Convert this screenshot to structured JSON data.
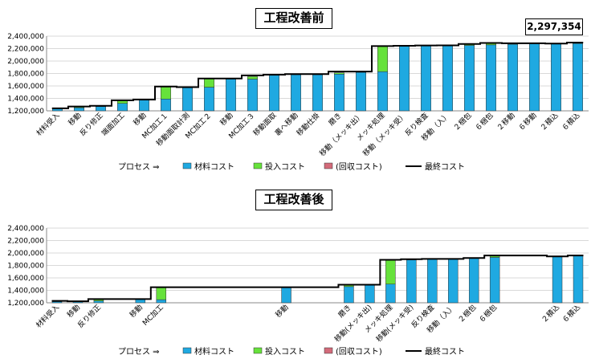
{
  "chart_data": [
    {
      "type": "bar",
      "title": "工程改善前",
      "total_label": "2,297,354",
      "ylim": [
        1200000,
        2400000
      ],
      "yticks": [
        "1,200,000",
        "1,400,000",
        "1,600,000",
        "1,800,000",
        "2,000,000",
        "2,200,000",
        "2,400,000"
      ],
      "categories": [
        "材料受入",
        "移動",
        "反り修正",
        "端面加工",
        "移動",
        "MC加工１",
        "移動面取計測",
        "MC加工２",
        "移動",
        "MC加工３",
        "移動面取",
        "裏へ移動",
        "移動仕掛",
        "磨き",
        "移動（メッキ出）",
        "メッキ処理",
        "移動（メッキ受）",
        "反り検査",
        "移動（入）",
        "２梱包",
        "６梱包",
        "２移動",
        "６移動",
        "２積込",
        "６積込"
      ],
      "legend_prefix": "プロセス ⇒",
      "series": [
        {
          "name": "材料コスト",
          "color": "#1fa9e1",
          "values": [
            1240000,
            1250000,
            1270000,
            1320000,
            1380000,
            1390000,
            1570000,
            1580000,
            1710000,
            1710000,
            1770000,
            1780000,
            1780000,
            1790000,
            1820000,
            1830000,
            2240000,
            2245000,
            2250000,
            2252000,
            2260000,
            2270000,
            2275000,
            2280000,
            2282000
          ]
        },
        {
          "name": "投入コスト",
          "color": "#66e23b",
          "values": [
            0,
            20000,
            10000,
            50000,
            0,
            200000,
            0,
            140000,
            0,
            40000,
            0,
            0,
            0,
            20000,
            10000,
            410000,
            0,
            0,
            0,
            20000,
            30000,
            10000,
            10000,
            0,
            10000
          ]
        },
        {
          "name": "(回収コスト)",
          "color": "#d36b7a",
          "values": [
            0,
            0,
            0,
            0,
            0,
            0,
            0,
            0,
            0,
            0,
            0,
            0,
            0,
            0,
            0,
            0,
            0,
            0,
            0,
            0,
            0,
            0,
            0,
            0,
            0
          ]
        }
      ],
      "line": {
        "name": "最終コスト",
        "color": "#000000",
        "values": [
          1240000,
          1270000,
          1280000,
          1370000,
          1380000,
          1590000,
          1580000,
          1720000,
          1720000,
          1770000,
          1780000,
          1790000,
          1790000,
          1830000,
          1830000,
          2240000,
          2245000,
          2250000,
          2252000,
          2275000,
          2290000,
          2285000,
          2285000,
          2280000,
          2297354
        ]
      }
    },
    {
      "type": "bar",
      "title": "工程改善後",
      "ylim": [
        1200000,
        2400000
      ],
      "yticks": [
        "1,200,000",
        "1,400,000",
        "1,600,000",
        "1,800,000",
        "2,000,000",
        "2,200,000",
        "2,400,000"
      ],
      "categories": [
        "材料受入",
        "移動",
        "反り修正",
        "",
        "移動",
        "MC加工",
        "",
        "",
        "",
        "",
        "",
        "移動",
        "",
        "",
        "磨き",
        "移動(メッキ出)",
        "メッキ処理",
        "移動(メッキ受)",
        "反り検査",
        "移動（入）",
        "２梱包",
        "６梱包",
        "",
        "",
        "２積込",
        "６積込"
      ],
      "legend_prefix": "プロセス ⇒",
      "series": [
        {
          "name": "材料コスト",
          "color": "#1fa9e1",
          "values": [
            1220000,
            1225000,
            1230000,
            1200000,
            1260000,
            1250000,
            1200000,
            1200000,
            1200000,
            1200000,
            1200000,
            1450000,
            1200000,
            1200000,
            1460000,
            1490000,
            1500000,
            1890000,
            1900000,
            1905000,
            1920000,
            1930000,
            1200000,
            1200000,
            1945000,
            1960000
          ]
        },
        {
          "name": "投入コスト",
          "color": "#66e23b",
          "values": [
            10000,
            0,
            30000,
            0,
            0,
            200000,
            0,
            0,
            0,
            0,
            0,
            0,
            0,
            0,
            30000,
            0,
            390000,
            0,
            0,
            0,
            0,
            30000,
            0,
            0,
            0,
            0
          ]
        },
        {
          "name": "(回収コスト)",
          "color": "#d36b7a",
          "values": [
            0,
            0,
            0,
            0,
            0,
            0,
            0,
            0,
            0,
            0,
            0,
            0,
            0,
            0,
            0,
            0,
            0,
            0,
            0,
            0,
            0,
            0,
            0,
            0,
            0,
            0
          ]
        }
      ],
      "line": {
        "name": "最終コスト",
        "color": "#000000",
        "values": [
          1230000,
          1225000,
          1260000,
          1260000,
          1260000,
          1450000,
          1450000,
          1450000,
          1450000,
          1450000,
          1450000,
          1450000,
          1450000,
          1450000,
          1490000,
          1490000,
          1890000,
          1900000,
          1905000,
          1905000,
          1920000,
          1960000,
          1960000,
          1960000,
          1945000,
          1960000
        ]
      }
    }
  ]
}
